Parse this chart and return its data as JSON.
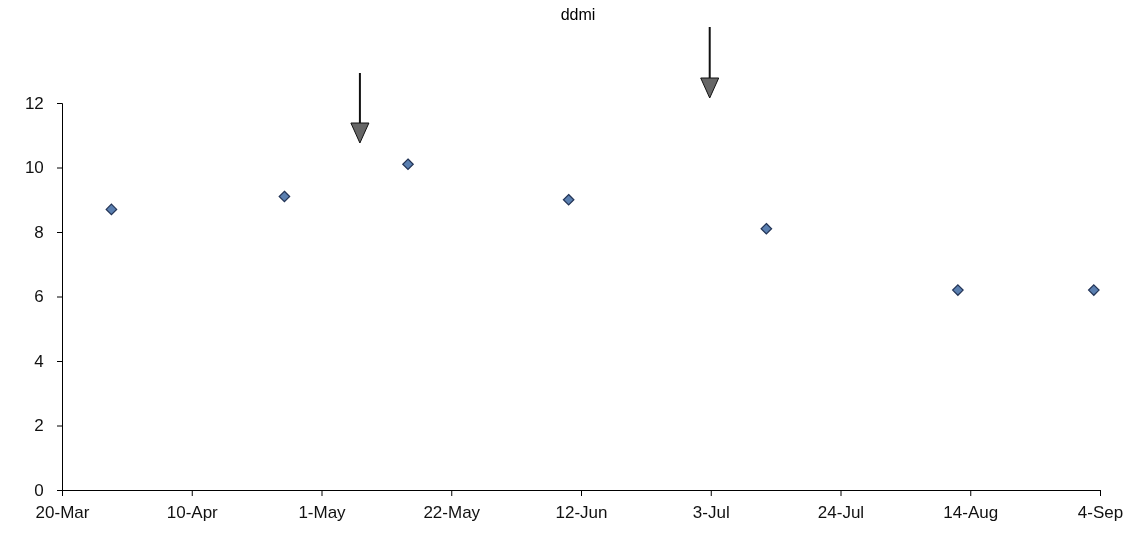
{
  "chart_data": {
    "type": "scatter",
    "title": "ddmi",
    "x": [
      "--03-28",
      "--04-25",
      "--05-15",
      "--06-10",
      "--07-12",
      "--08-12",
      "--09-03"
    ],
    "series": [
      {
        "color": "#5a7fb0",
        "values": [
          8.7,
          9.1,
          10.1,
          9.0,
          8.1,
          6.2,
          6.2
        ]
      }
    ],
    "xlim": [
      "--03-20",
      "--09-04"
    ],
    "xticks": [
      {
        "value": "--03-20",
        "label": "20-Mar"
      },
      {
        "value": "--04-10",
        "label": "10-Apr"
      },
      {
        "value": "--05-01",
        "label": "1-May"
      },
      {
        "value": "--05-22",
        "label": "22-May"
      },
      {
        "value": "--06-12",
        "label": "12-Jun"
      },
      {
        "value": "--07-03",
        "label": "3-Jul"
      },
      {
        "value": "--07-24",
        "label": "24-Jul"
      },
      {
        "value": "--08-14",
        "label": "14-Aug"
      },
      {
        "value": "--09-04",
        "label": "4-Sep"
      }
    ],
    "ylim": [
      0,
      12
    ],
    "yticks": [
      0,
      2,
      4,
      6,
      8,
      10,
      12
    ],
    "marker": "diamond",
    "grid": false
  }
}
